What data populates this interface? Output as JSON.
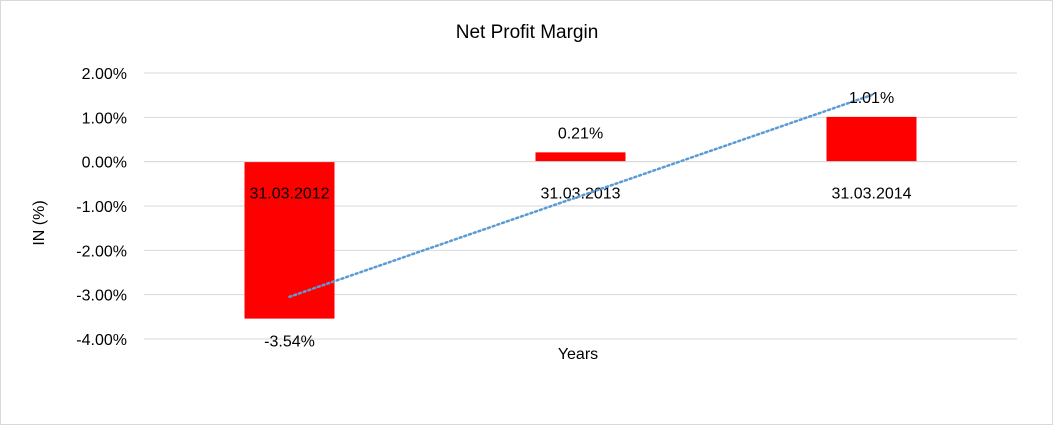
{
  "chart_data": {
    "type": "bar",
    "title": "Net Profit Margin",
    "xlabel": "Years",
    "ylabel": "IN (%)",
    "categories": [
      "31.03.2012",
      "31.03.2013",
      "31.03.2014"
    ],
    "series": [
      {
        "values": [
          -3.54,
          0.21,
          1.01
        ],
        "labels": [
          "-3.54%",
          "0.21%",
          "1.01%"
        ],
        "color": "#ff0000"
      }
    ],
    "trendline": {
      "type": "linear",
      "style": "dotted",
      "color": "#5b9bd5"
    },
    "ylim": [
      -4.0,
      2.0
    ],
    "yticks": [
      2.0,
      1.0,
      0.0,
      -1.0,
      -2.0,
      -3.0,
      -4.0
    ],
    "ytick_labels": [
      "2.00%",
      "1.00%",
      "0.00%",
      "-1.00%",
      "-2.00%",
      "-3.00%",
      "-4.00%"
    ],
    "grid": true,
    "gridline_color": "#d9d9d9",
    "legend": "none"
  }
}
